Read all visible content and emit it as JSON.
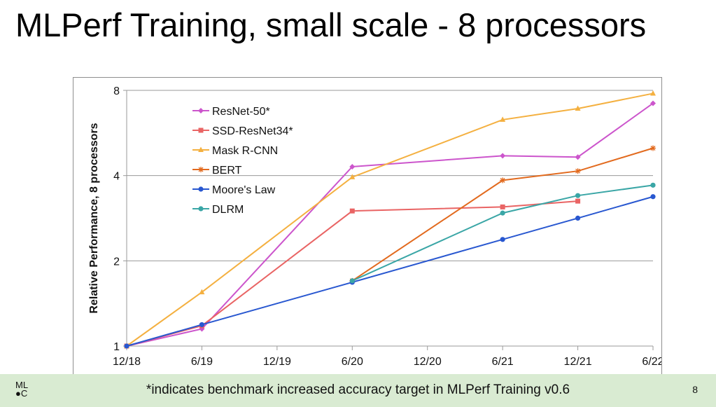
{
  "slide": {
    "title": "MLPerf Training, small scale - 8 processors",
    "footnote": "*indicates benchmark increased accuracy target in MLPerf Training v0.6",
    "page_number": "8",
    "logo_line1": "ML",
    "logo_line2": "●C"
  },
  "chart_data": {
    "type": "line",
    "title": "",
    "xlabel": "",
    "ylabel": "Relative Performance, 8 processors",
    "y_scale": "log2",
    "ylim": [
      1,
      8
    ],
    "y_ticks": [
      1,
      2,
      4,
      8
    ],
    "x_ticks": [
      "12/18",
      "6/19",
      "12/19",
      "6/20",
      "12/20",
      "6/21",
      "12/21",
      "6/22"
    ],
    "grid": "horizontal",
    "legend_position": "top-left",
    "series": [
      {
        "name": "ResNet-50*",
        "color": "#cc55cc",
        "marker": "diamond",
        "points": [
          [
            "12/18",
            1.0
          ],
          [
            "6/19",
            1.15
          ],
          [
            "6/20",
            4.3
          ],
          [
            "6/21",
            4.7
          ],
          [
            "12/21",
            4.65
          ],
          [
            "6/22",
            7.2
          ]
        ]
      },
      {
        "name": "SSD-ResNet34*",
        "color": "#e96464",
        "marker": "square",
        "points": [
          [
            "12/18",
            1.0
          ],
          [
            "6/19",
            1.18
          ],
          [
            "6/20",
            3.0
          ],
          [
            "6/21",
            3.1
          ],
          [
            "12/21",
            3.25
          ]
        ]
      },
      {
        "name": "Mask R-CNN",
        "color": "#f4b040",
        "marker": "triangle",
        "points": [
          [
            "12/18",
            1.0
          ],
          [
            "6/19",
            1.55
          ],
          [
            "6/20",
            3.95
          ],
          [
            "6/21",
            6.3
          ],
          [
            "12/21",
            6.9
          ],
          [
            "6/22",
            7.8
          ]
        ]
      },
      {
        "name": "BERT",
        "color": "#e26a1e",
        "marker": "asterisk",
        "points": [
          [
            "6/20",
            1.7
          ],
          [
            "6/21",
            3.85
          ],
          [
            "12/21",
            4.15
          ],
          [
            "6/22",
            5.0
          ]
        ]
      },
      {
        "name": "Moore's Law",
        "color": "#2857d0",
        "marker": "circle",
        "points": [
          [
            "12/18",
            1.0
          ],
          [
            "6/19",
            1.19
          ],
          [
            "6/20",
            1.68
          ],
          [
            "6/21",
            2.38
          ],
          [
            "12/21",
            2.83
          ],
          [
            "6/22",
            3.37
          ]
        ]
      },
      {
        "name": "DLRM",
        "color": "#3aa6a6",
        "marker": "circle",
        "points": [
          [
            "6/20",
            1.7
          ],
          [
            "6/21",
            2.95
          ],
          [
            "12/21",
            3.4
          ],
          [
            "6/22",
            3.7
          ]
        ]
      }
    ]
  }
}
